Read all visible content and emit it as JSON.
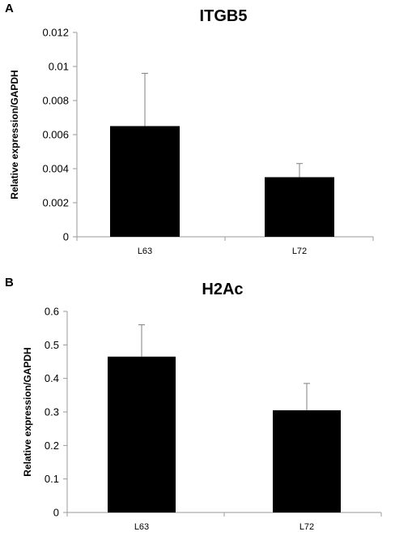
{
  "panels": [
    {
      "letter": "A"
    },
    {
      "letter": "B"
    }
  ],
  "chart_data": [
    {
      "type": "bar",
      "title": "ITGB5",
      "xlabel": "",
      "ylabel": "Relative expression/GAPDH",
      "categories": [
        "L63",
        "L72"
      ],
      "values": [
        0.0065,
        0.0035
      ],
      "errors": [
        0.0031,
        0.0008
      ],
      "ylim": [
        0,
        0.012
      ],
      "yticks": [
        "0",
        "0.002",
        "0.004",
        "0.006",
        "0.008",
        "0.01",
        "0.012"
      ],
      "grid": false,
      "bar_color": "#000000",
      "error_color": "#808080"
    },
    {
      "type": "bar",
      "title": "H2Ac",
      "xlabel": "",
      "ylabel": "Relative expression/GAPDH",
      "categories": [
        "L63",
        "L72"
      ],
      "values": [
        0.465,
        0.305
      ],
      "errors": [
        0.095,
        0.08
      ],
      "ylim": [
        0,
        0.6
      ],
      "yticks": [
        "0",
        "0.1",
        "0.2",
        "0.3",
        "0.4",
        "0.5",
        "0.6"
      ],
      "grid": false,
      "bar_color": "#000000",
      "error_color": "#808080"
    }
  ]
}
